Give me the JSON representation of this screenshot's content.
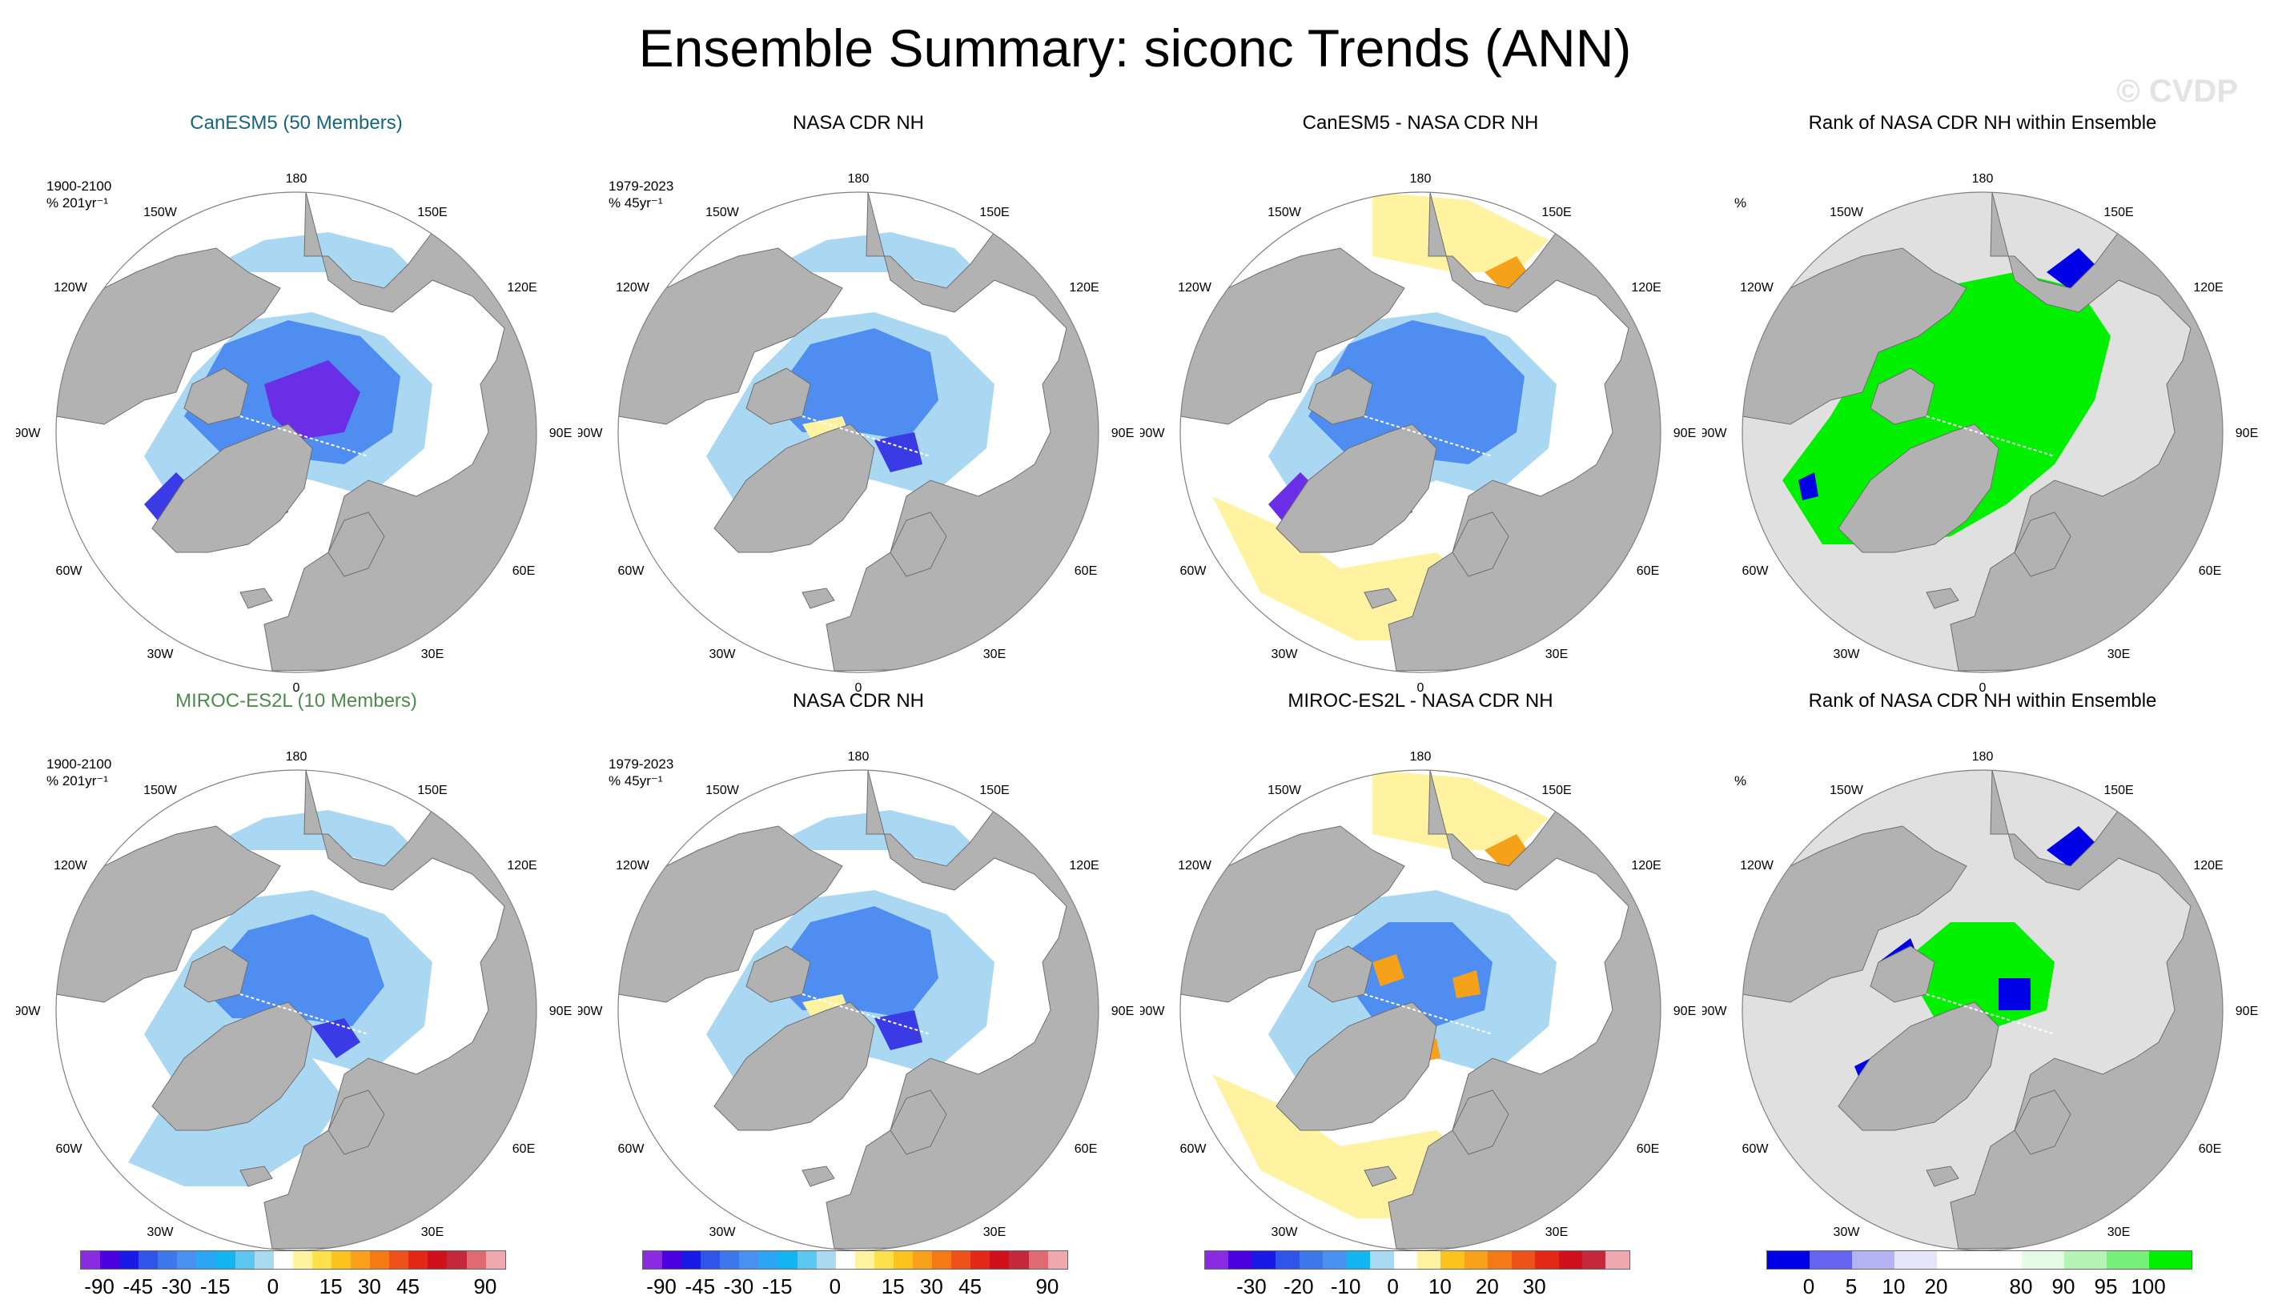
{
  "title": "Ensemble Summary: siconc Trends (ANN)",
  "copyright": "© CVDP",
  "colors": {
    "land": "#b2b2b2",
    "ocean": "#ffffff",
    "rank_background": "#e0e0e0",
    "trend_neg_strong": "#3b3be6",
    "trend_neg_mid": "#4f8ef0",
    "trend_neg_light": "#aad8f2",
    "trend_pos_light": "#fff2a0",
    "trend_pos_mid": "#f6a11a",
    "rank_low": "#0000e6",
    "rank_high": "#00f000"
  },
  "lon_labels": {
    "top": "180",
    "bottom": "0",
    "left": "90W",
    "right": "90E",
    "upper_left_outer": "150W",
    "upper_left_inner": "120W",
    "upper_right_outer": "150E",
    "upper_right_inner": "120E",
    "lower_left_inner": "60W",
    "lower_left_outer": "30W",
    "lower_right_inner": "60E",
    "lower_right_outer": "30E"
  },
  "rows": [
    {
      "panels": [
        {
          "title": "CanESM5 (50 Members)",
          "period": "1900-2100",
          "units": "% 201yr⁻¹",
          "kind": "trend",
          "variant": "canesm"
        },
        {
          "title": "NASA CDR NH",
          "period": "1979-2023",
          "units": "% 45yr⁻¹",
          "kind": "trend",
          "variant": "obs"
        },
        {
          "title": "CanESM5 - NASA CDR NH",
          "kind": "diff",
          "variant": "canesm-diff"
        },
        {
          "title": "Rank of NASA CDR NH within Ensemble",
          "units": "%",
          "kind": "rank",
          "variant": "canesm-rank"
        }
      ]
    },
    {
      "panels": [
        {
          "title": "MIROC-ES2L (10 Members)",
          "period": "1900-2100",
          "units": "% 201yr⁻¹",
          "kind": "trend",
          "variant": "miroc"
        },
        {
          "title": "NASA CDR NH",
          "period": "1979-2023",
          "units": "% 45yr⁻¹",
          "kind": "trend",
          "variant": "obs"
        },
        {
          "title": "MIROC-ES2L - NASA CDR NH",
          "kind": "diff",
          "variant": "miroc-diff"
        },
        {
          "title": "Rank of NASA CDR NH within Ensemble",
          "units": "%",
          "kind": "rank",
          "variant": "miroc-rank"
        }
      ]
    }
  ],
  "colorbars": [
    {
      "colors": [
        "#8a2be2",
        "#4b00e0",
        "#1a1ae6",
        "#2d55e8",
        "#3c78ec",
        "#4a90f0",
        "#2ba6f2",
        "#13b4f2",
        "#5cc8f2",
        "#a8daf2",
        "#ffffff",
        "#fff2a0",
        "#fde14a",
        "#fcc21e",
        "#f9a11a",
        "#f57a16",
        "#ee5218",
        "#e42818",
        "#d0101a",
        "#c4283a",
        "#e06a72",
        "#f0a8b0"
      ],
      "labels": [
        "-90",
        "-45",
        "-30",
        "-15",
        "0",
        "15",
        "30",
        "45",
        "90"
      ],
      "label_positions": [
        1,
        3,
        5,
        7,
        10,
        13,
        15,
        17,
        21
      ]
    },
    {
      "colors": [
        "#8a2be2",
        "#4b00e0",
        "#1a1ae6",
        "#2d55e8",
        "#3c78ec",
        "#4a90f0",
        "#2ba6f2",
        "#13b4f2",
        "#5cc8f2",
        "#a8daf2",
        "#ffffff",
        "#fff2a0",
        "#fde14a",
        "#fcc21e",
        "#f9a11a",
        "#f57a16",
        "#ee5218",
        "#e42818",
        "#d0101a",
        "#c4283a",
        "#e06a72",
        "#f0a8b0"
      ],
      "labels": [
        "-90",
        "-45",
        "-30",
        "-15",
        "0",
        "15",
        "30",
        "45",
        "90"
      ],
      "label_positions": [
        1,
        3,
        5,
        7,
        10,
        13,
        15,
        17,
        21
      ]
    },
    {
      "colors": [
        "#8a2be2",
        "#4b00e0",
        "#1a1ae6",
        "#2d55e8",
        "#3c78ec",
        "#4a90f0",
        "#13b4f2",
        "#a8daf2",
        "#ffffff",
        "#fff2a0",
        "#fcc21e",
        "#f9a11a",
        "#f57a16",
        "#ee5218",
        "#e42818",
        "#d0101a",
        "#c4283a",
        "#f0a8b0"
      ],
      "labels": [
        "-30",
        "-20",
        "-10",
        "0",
        "10",
        "20",
        "30"
      ],
      "label_positions": [
        2,
        4,
        6,
        8,
        10,
        12,
        14
      ]
    },
    {
      "colors": [
        "#0000e6",
        "#6464f0",
        "#b4b4f4",
        "#e6e6fa",
        "#ffffff",
        "#ffffff",
        "#e6fae6",
        "#b4f4b4",
        "#78ef78",
        "#00f000"
      ],
      "labels": [
        "0",
        "5",
        "10",
        "20",
        "80",
        "90",
        "95",
        "100"
      ],
      "label_positions": [
        1,
        2,
        3,
        4,
        6,
        7,
        8,
        9
      ]
    }
  ]
}
